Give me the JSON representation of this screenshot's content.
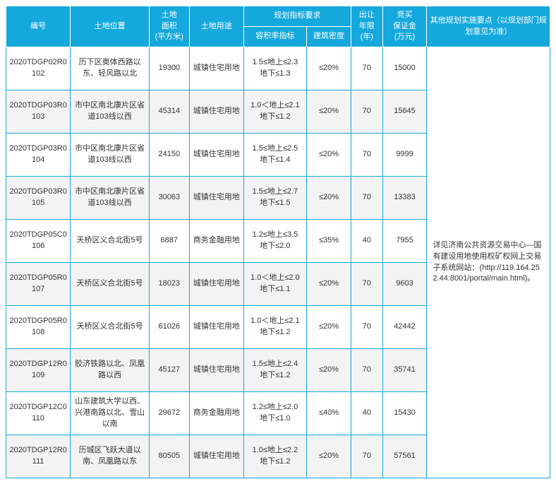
{
  "headers": {
    "id": "编号",
    "location": "土地位置",
    "area": "土地\n面积\n(平方米)",
    "use": "土地用途",
    "plan_group": "规划指标要求",
    "far": "容积率指标",
    "density": "建筑密度",
    "years": "出让\n年限\n(年)",
    "deposit": "竞买\n保证金\n(万元)",
    "other": "其他规划实施要点（以规划部门规划意见为准）"
  },
  "remark": "详见济南公共资源交易中心—国有建设用地使用权矿权网上交易子系统网站：(http://119.164.252.44:8001/portal/main.html)。",
  "rows": [
    {
      "id": "2020TDGP02R0102",
      "loc": "历下区奥体西路以东、轻风路以北",
      "area": "19300",
      "use": "城镇住宅用地",
      "far": "1.5≤地上≤2.3\n地下≤1.3",
      "dens": "≤20%",
      "yrs": "70",
      "dep": "15000"
    },
    {
      "id": "2020TDGP03R0103",
      "loc": "市中区南北康片区省道103线以西",
      "area": "45314",
      "use": "城镇住宅用地",
      "far": "1.0＜地上≤2.1\n地下≤1.2",
      "dens": "≤20%",
      "yrs": "70",
      "dep": "15645"
    },
    {
      "id": "2020TDGP03R0104",
      "loc": "市中区南北康片区省道103线以西",
      "area": "24150",
      "use": "城镇住宅用地",
      "far": "1.5≤地上≤2.5\n地下≤1.4",
      "dens": "≤20%",
      "yrs": "70",
      "dep": "9999"
    },
    {
      "id": "2020TDGP03R0105",
      "loc": "市中区南北康片区省道103线以西",
      "area": "30063",
      "use": "城镇住宅用地",
      "far": "1.5≤地上≤2.7\n地下≤1.5",
      "dens": "≤20%",
      "yrs": "70",
      "dep": "13383"
    },
    {
      "id": "2020TDGP05C0106",
      "loc": "天桥区义合北街5号",
      "area": "6887",
      "use": "商务金融用地",
      "far": "1.2≤地上≤3.5\n地下≤2.0",
      "dens": "≤35%",
      "yrs": "40",
      "dep": "7955"
    },
    {
      "id": "2020TDGP05R0107",
      "loc": "天桥区义合北街5号",
      "area": "18023",
      "use": "城镇住宅用地",
      "far": "1.0＜地上≤2.0\n地下≤1.1",
      "dens": "≤20%",
      "yrs": "70",
      "dep": "9603"
    },
    {
      "id": "2020TDGP05R0108",
      "loc": "天桥区义合北街5号",
      "area": "61026",
      "use": "城镇住宅用地",
      "far": "1.0＜地上≤2.1\n地下≤1.2",
      "dens": "≤20%",
      "yrs": "70",
      "dep": "42442"
    },
    {
      "id": "2020TDGP12R0109",
      "loc": "胶济铁路以北、凤凰路以西",
      "area": "45127",
      "use": "城镇住宅用地",
      "far": "1.5≤地上≤2.4\n地下≤1.2",
      "dens": "≤20%",
      "yrs": "70",
      "dep": "35741"
    },
    {
      "id": "2020TDGP12C0110",
      "loc": "山东建筑大学以西、兴港南路以北、雪山以南",
      "area": "29672",
      "use": "商务金融用地",
      "far": "1.2≤地上≤2.0\n地下≤1.0",
      "dens": "≤40%",
      "yrs": "40",
      "dep": "15430"
    },
    {
      "id": "2020TDGP12R0111",
      "loc": "历城区飞跃大道以南、凤凰路以东",
      "area": "80505",
      "use": "城镇住宅用地",
      "far": "1.0≤地上≤2.2\n地下≤1.2",
      "dens": "≤20%",
      "yrs": "70",
      "dep": "57561"
    }
  ],
  "col_widths": {
    "id": "90",
    "loc": "110",
    "area": "56",
    "use": "76",
    "far": "88",
    "dens": "62",
    "yrs": "44",
    "dep": "62",
    "other": "172"
  }
}
